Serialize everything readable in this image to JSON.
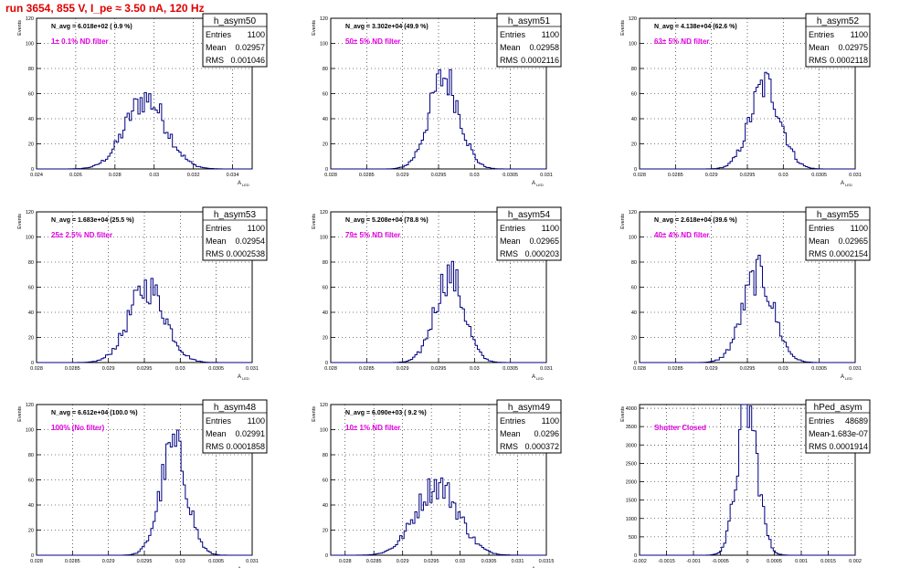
{
  "title": "run 3654,   855 V, I_pe ≈ 3.50 nA, 120 Hz",
  "colors": {
    "hist": "#000080",
    "title": "#e00000",
    "filter": "#e000e0",
    "grid": "#000000"
  },
  "chart_data": [
    {
      "type": "histogram",
      "name": "h_asym50",
      "navg": "N_avg = 6.018e+02 ( 0.9 %)",
      "filter": "1± 0.1% ND filter",
      "stats": {
        "Entries": "1100",
        "Mean": "0.02957",
        "RMS": "0.001046"
      },
      "xlim": [
        0.024,
        0.035
      ],
      "ylim": [
        0,
        120
      ],
      "xticks": [
        "0.024",
        "0.026",
        "0.028",
        "0.03",
        "0.032",
        "0.034"
      ],
      "xtickvals": [
        0.024,
        0.026,
        0.028,
        0.03,
        0.032,
        0.034
      ],
      "yticks": [
        0,
        20,
        40,
        60,
        80,
        100,
        120
      ],
      "ylabel": "Events",
      "xlabel": "A_{LED}",
      "mean": 0.02957,
      "rms": 0.001046,
      "peak": 56
    },
    {
      "type": "histogram",
      "name": "h_asym51",
      "navg": "N_avg = 3.302e+04 (49.9 %)",
      "filter": "50± 5% ND filter",
      "stats": {
        "Entries": "1100",
        "Mean": "0.02958",
        "RMS": "0.0002116"
      },
      "xlim": [
        0.028,
        0.031
      ],
      "ylim": [
        0,
        120
      ],
      "xticks": [
        "0.028",
        "0.0285",
        "0.029",
        "0.0295",
        "0.03",
        "0.0305",
        "0.031"
      ],
      "xtickvals": [
        0.028,
        0.0285,
        0.029,
        0.0295,
        0.03,
        0.0305,
        0.031
      ],
      "yticks": [
        0,
        20,
        40,
        60,
        80,
        100,
        120
      ],
      "ylabel": "Events",
      "xlabel": "A_{LED}",
      "mean": 0.02958,
      "rms": 0.0002116,
      "peak": 73
    },
    {
      "type": "histogram",
      "name": "h_asym52",
      "navg": "N_avg = 4.138e+04 (62.6 %)",
      "filter": "63± 5% ND filter",
      "stats": {
        "Entries": "1100",
        "Mean": "0.02975",
        "RMS": "0.0002118"
      },
      "xlim": [
        0.028,
        0.031
      ],
      "ylim": [
        0,
        120
      ],
      "xticks": [
        "0.028",
        "0.0285",
        "0.029",
        "0.0295",
        "0.03",
        "0.0305",
        "0.031"
      ],
      "xtickvals": [
        0.028,
        0.0285,
        0.029,
        0.0295,
        0.03,
        0.0305,
        0.031
      ],
      "yticks": [
        0,
        20,
        40,
        60,
        80,
        100,
        120
      ],
      "ylabel": "Events",
      "xlabel": "A_{LED}",
      "mean": 0.02975,
      "rms": 0.0002118,
      "peak": 67
    },
    {
      "type": "histogram",
      "name": "h_asym53",
      "navg": "N_avg = 1.683e+04 (25.5 %)",
      "filter": "25± 2.5% ND filter",
      "stats": {
        "Entries": "1100",
        "Mean": "0.02954",
        "RMS": "0.0002538"
      },
      "xlim": [
        0.028,
        0.031
      ],
      "ylim": [
        0,
        120
      ],
      "xticks": [
        "0.028",
        "0.0285",
        "0.029",
        "0.0295",
        "0.03",
        "0.0305",
        "0.031"
      ],
      "xtickvals": [
        0.028,
        0.0285,
        0.029,
        0.0295,
        0.03,
        0.0305,
        0.031
      ],
      "yticks": [
        0,
        20,
        40,
        60,
        80,
        100,
        120
      ],
      "ylabel": "Events",
      "xlabel": "A_{LED}",
      "mean": 0.02954,
      "rms": 0.0002538,
      "peak": 60
    },
    {
      "type": "histogram",
      "name": "h_asym54",
      "navg": "N_avg = 5.208e+04 (78.8 %)",
      "filter": "79± 5% ND filter",
      "stats": {
        "Entries": "1100",
        "Mean": "0.02965",
        "RMS": "0.000203"
      },
      "xlim": [
        0.028,
        0.031
      ],
      "ylim": [
        0,
        120
      ],
      "xticks": [
        "0.028",
        "0.0285",
        "0.029",
        "0.0295",
        "0.03",
        "0.0305",
        "0.031"
      ],
      "xtickvals": [
        0.028,
        0.0285,
        0.029,
        0.0295,
        0.03,
        0.0305,
        0.031
      ],
      "yticks": [
        0,
        20,
        40,
        60,
        80,
        100,
        120
      ],
      "ylabel": "Events",
      "xlabel": "A_{LED}",
      "mean": 0.02965,
      "rms": 0.000203,
      "peak": 70
    },
    {
      "type": "histogram",
      "name": "h_asym55",
      "navg": "N_avg = 2.618e+04 (39.6 %)",
      "filter": "40± 4% ND filter",
      "stats": {
        "Entries": "1100",
        "Mean": "0.02965",
        "RMS": "0.0002154"
      },
      "xlim": [
        0.028,
        0.031
      ],
      "ylim": [
        0,
        120
      ],
      "xticks": [
        "0.028",
        "0.0285",
        "0.029",
        "0.0295",
        "0.03",
        "0.0305",
        "0.031"
      ],
      "xtickvals": [
        0.028,
        0.0285,
        0.029,
        0.0295,
        0.03,
        0.0305,
        0.031
      ],
      "yticks": [
        0,
        20,
        40,
        60,
        80,
        100,
        120
      ],
      "ylabel": "Events",
      "xlabel": "A_{LED}",
      "mean": 0.02965,
      "rms": 0.0002154,
      "peak": 70
    },
    {
      "type": "histogram",
      "name": "h_asym48",
      "navg": "N_avg = 6.612e+04 (100.0 %)",
      "filter": "100% (No filter)",
      "stats": {
        "Entries": "1100",
        "Mean": "0.02991",
        "RMS": "0.0001858"
      },
      "xlim": [
        0.028,
        0.031
      ],
      "ylim": [
        0,
        120
      ],
      "xticks": [
        "0.028",
        "0.0285",
        "0.029",
        "0.0295",
        "0.03",
        "0.0305",
        "0.031"
      ],
      "xtickvals": [
        0.028,
        0.0285,
        0.029,
        0.0295,
        0.03,
        0.0305,
        0.031
      ],
      "yticks": [
        0,
        20,
        40,
        60,
        80,
        100,
        120
      ],
      "ylabel": "Events",
      "xlabel": "A_{LED}",
      "mean": 0.02991,
      "rms": 0.0001858,
      "peak": 86
    },
    {
      "type": "histogram",
      "name": "h_asym49",
      "navg": "N_avg = 6.090e+03 ( 9.2 %)",
      "filter": "10± 1% ND filter",
      "stats": {
        "Entries": "1100",
        "Mean": "0.0296",
        "RMS": "0.000372"
      },
      "xlim": [
        0.02775,
        0.0315
      ],
      "ylim": [
        0,
        120
      ],
      "xticks": [
        "0.0275",
        "0.028",
        "0.0285",
        "0.029",
        "0.0295",
        "0.03",
        "0.0305",
        "0.031",
        "0.0315"
      ],
      "xtickvals": [
        0.0275,
        0.028,
        0.0285,
        0.029,
        0.0295,
        0.03,
        0.0305,
        0.031,
        0.0315
      ],
      "yticks": [
        0,
        20,
        40,
        60,
        80,
        100,
        120
      ],
      "ylabel": "Events",
      "xlabel": "A_{LED}",
      "mean": 0.0296,
      "rms": 0.000372,
      "peak": 56
    },
    {
      "type": "histogram",
      "name": "hPed_asym",
      "navg": "",
      "filter": "Shutter Closed",
      "stats": {
        "Entries": "48689",
        "Mean": "-1.683e-07",
        "RMS": "0.0001914"
      },
      "xlim": [
        -0.002,
        0.002
      ],
      "ylim": [
        0,
        4100
      ],
      "xticks": [
        "-0.002",
        "-0.0015",
        "-0.001",
        "-0.0005",
        "0",
        "0.0005",
        "0.001",
        "0.0015",
        "0.002"
      ],
      "xtickvals": [
        -0.002,
        -0.0015,
        -0.001,
        -0.0005,
        0,
        0.0005,
        0.001,
        0.0015,
        0.002
      ],
      "yticks": [
        0,
        500,
        1000,
        1500,
        2000,
        2500,
        3000,
        3500,
        4000
      ],
      "ylabel": "Events",
      "xlabel": "",
      "mean": 0,
      "rms": 0.0001914,
      "peak": 3980
    }
  ]
}
